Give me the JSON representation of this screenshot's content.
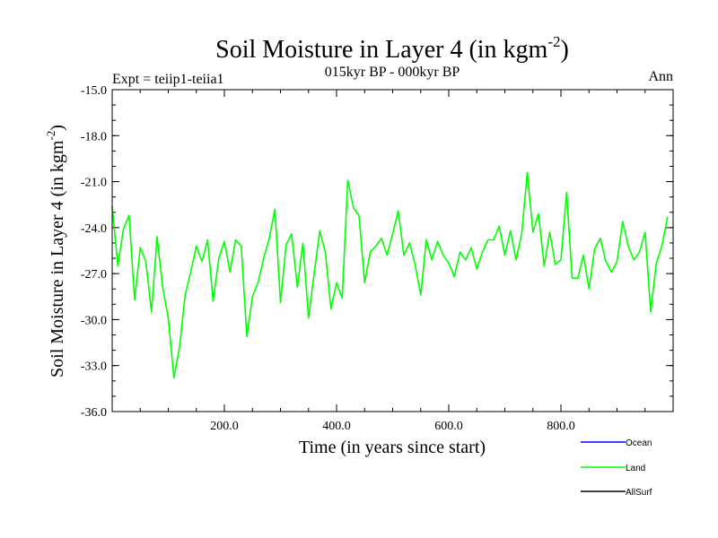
{
  "chart_data": {
    "type": "line",
    "title": "Soil Moisture in Layer 4 (in kgm",
    "title_superscript": "-2",
    "title_close": ")",
    "subtitle": "015kyr BP - 000kyr BP",
    "left_label": "Expt = teiip1-teiia1",
    "right_label": "Ann",
    "xlabel": "Time (in years since start)",
    "ylabel": "Soil Moisture in Layer 4 (in kgm",
    "ylabel_superscript": "-2",
    "ylabel_close": ")",
    "xlim": [
      0,
      1000
    ],
    "ylim": [
      -36.0,
      -15.0
    ],
    "x_ticks": [
      200.0,
      400.0,
      600.0,
      800.0
    ],
    "x_tick_labels": [
      "200.0",
      "400.0",
      "600.0",
      "800.0"
    ],
    "y_ticks": [
      -15.0,
      -18.0,
      -21.0,
      -24.0,
      -27.0,
      -30.0,
      -33.0,
      -36.0
    ],
    "y_tick_labels": [
      "-15.0",
      "-18.0",
      "-21.0",
      "-24.0",
      "-27.0",
      "-30.0",
      "-33.0",
      "-36.0"
    ],
    "legend_position": "bottom-right",
    "legend": [
      {
        "name": "Ocean",
        "color": "#0000ff"
      },
      {
        "name": "Land",
        "color": "#00ff00"
      },
      {
        "name": "AllSurf",
        "color": "#000000"
      }
    ],
    "series": [
      {
        "name": "Land",
        "color": "#00ff00",
        "x_start": 0,
        "x_step": 10,
        "values": [
          -22.6,
          -26.5,
          -24.1,
          -23.2,
          -28.7,
          -25.3,
          -26.2,
          -29.5,
          -24.6,
          -27.9,
          -29.9,
          -33.8,
          -31.8,
          -28.4,
          -26.9,
          -25.2,
          -26.2,
          -24.8,
          -28.8,
          -26.0,
          -24.9,
          -26.9,
          -24.8,
          -25.2,
          -31.1,
          -28.5,
          -27.6,
          -26.0,
          -24.7,
          -22.8,
          -28.9,
          -25.1,
          -24.4,
          -27.9,
          -25.0,
          -29.9,
          -27.0,
          -24.2,
          -25.6,
          -29.3,
          -27.6,
          -28.6,
          -20.9,
          -22.7,
          -23.2,
          -27.6,
          -25.6,
          -25.2,
          -24.7,
          -25.8,
          -24.4,
          -22.9,
          -25.8,
          -25.0,
          -26.4,
          -28.4,
          -24.8,
          -26.1,
          -24.9,
          -25.8,
          -26.3,
          -27.2,
          -25.6,
          -26.1,
          -25.3,
          -26.7,
          -25.6,
          -24.8,
          -24.8,
          -23.9,
          -25.8,
          -24.2,
          -26.1,
          -24.4,
          -20.4,
          -24.3,
          -23.1,
          -26.5,
          -24.3,
          -26.4,
          -26.1,
          -21.7,
          -27.3,
          -27.3,
          -25.8,
          -28.0,
          -25.4,
          -24.7,
          -26.2,
          -26.9,
          -26.2,
          -23.6,
          -25.2,
          -26.1,
          -25.6,
          -24.3,
          -29.5,
          -26.3,
          -25.2,
          -23.3
        ]
      }
    ]
  }
}
